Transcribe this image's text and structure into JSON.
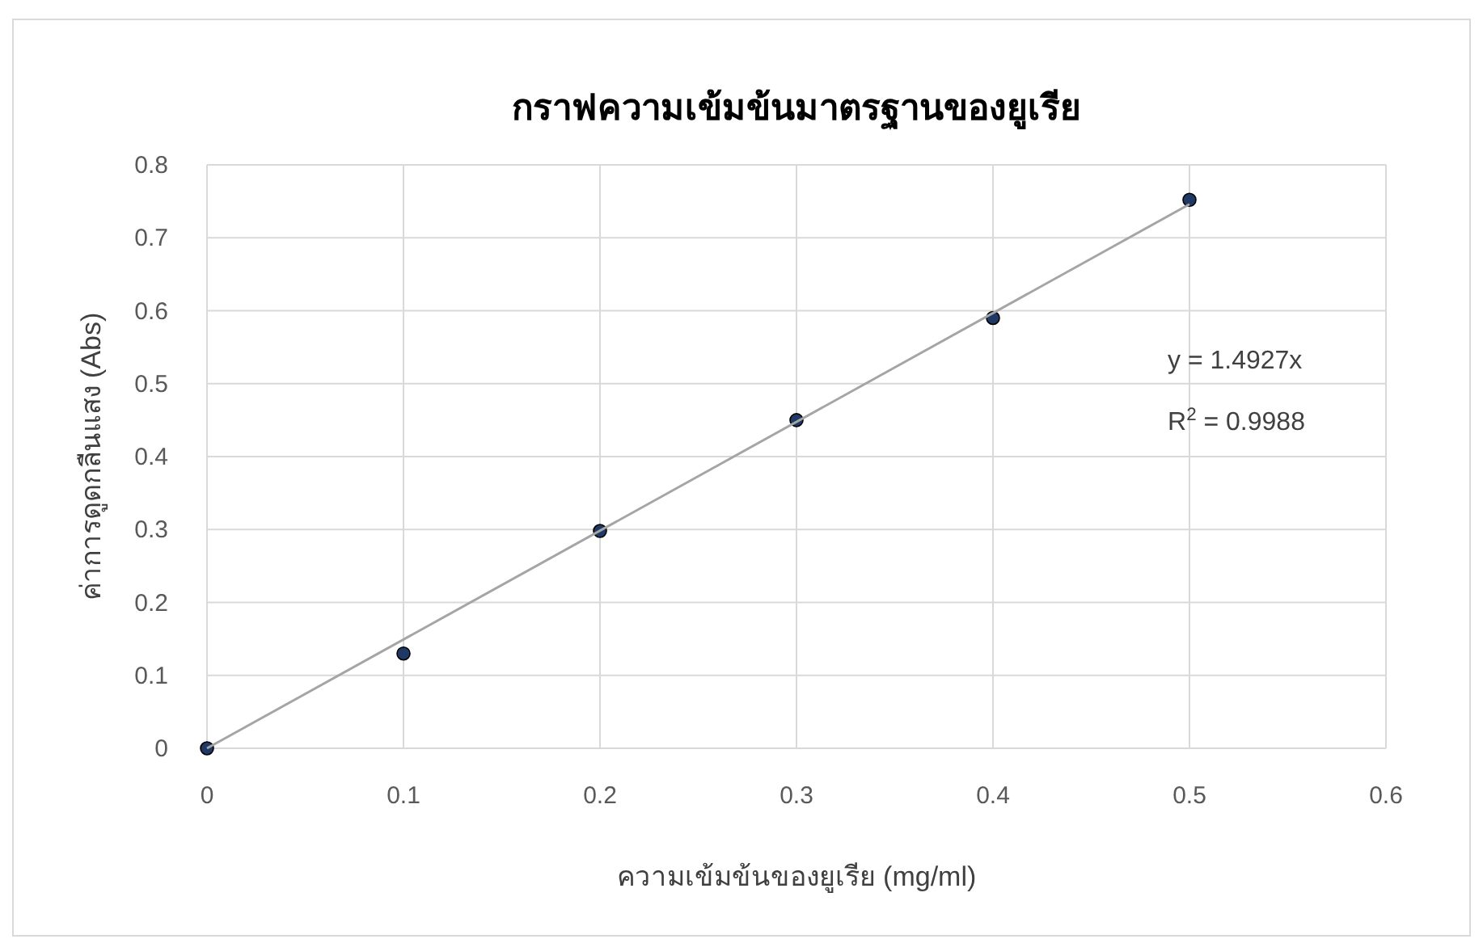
{
  "chart_data": {
    "type": "scatter",
    "title": "กราฟความเข้มข้นมาตรฐานของยูเรีย",
    "xlabel": "ความเข้มข้นของยูเรีย (mg/ml)",
    "ylabel": "ค่าการดูดกลืนแสง (Abs)",
    "xlim": [
      0,
      0.6
    ],
    "ylim": [
      0,
      0.8
    ],
    "xticks": [
      0,
      0.1,
      0.2,
      0.3,
      0.4,
      0.5,
      0.6
    ],
    "yticks": [
      0,
      0.1,
      0.2,
      0.3,
      0.4,
      0.5,
      0.6,
      0.7,
      0.8
    ],
    "grid": true,
    "series": [
      {
        "type": "scatter",
        "marker": "circle",
        "color": "#1f3864",
        "x": [
          0,
          0.1,
          0.2,
          0.3,
          0.4,
          0.5
        ],
        "values": [
          0,
          0.13,
          0.298,
          0.45,
          0.59,
          0.752
        ]
      },
      {
        "type": "line",
        "color": "#a5a5a5",
        "line_style": "solid",
        "x": [
          0,
          0.5
        ],
        "values": [
          0,
          0.746
        ]
      }
    ],
    "annotations": [
      "y = 1.4927x",
      "R$^{2}$ = 0.9988"
    ]
  }
}
